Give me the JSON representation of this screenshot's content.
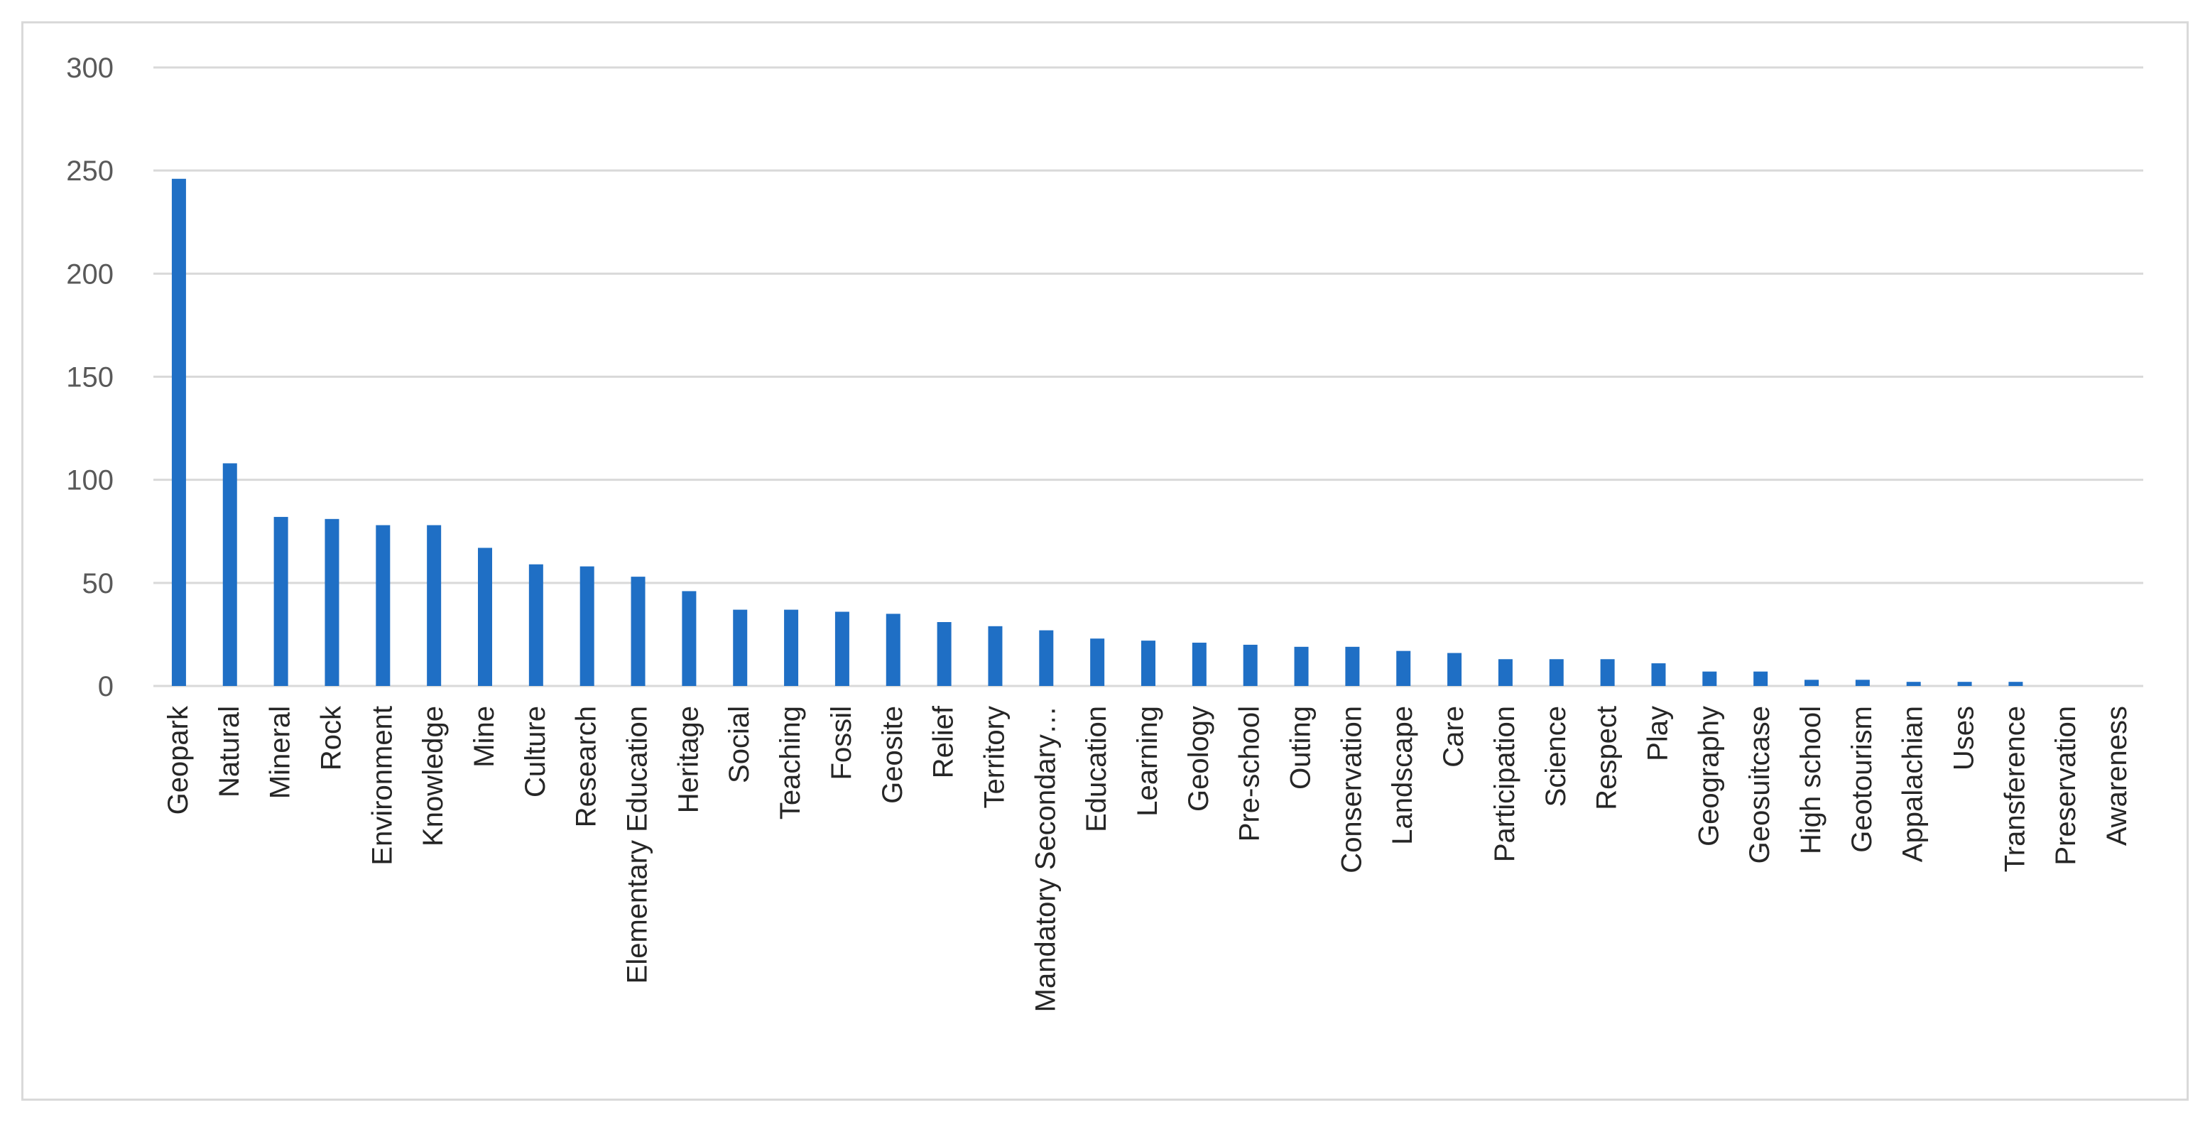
{
  "chart_data": {
    "type": "bar",
    "title": "",
    "xlabel": "",
    "ylabel": "",
    "ylim": [
      0,
      300
    ],
    "yticks": [
      "0",
      "50",
      "100",
      "150",
      "200",
      "250",
      "300"
    ],
    "grid": true,
    "legend": "none",
    "bar_color": "#1f6fc5",
    "categories": [
      "Geopark",
      "Natural",
      "Mineral",
      "Rock",
      "Environment",
      "Knowledge",
      "Mine",
      "Culture",
      "Research",
      "Elementary Education",
      "Heritage",
      "Social",
      "Teaching",
      "Fossil",
      "Geosite",
      "Relief",
      "Territory",
      "Mandatory Secondary…",
      "Education",
      "Learning",
      "Geology",
      "Pre-school",
      "Outing",
      "Conservation",
      "Landscape",
      "Care",
      "Participation",
      "Science",
      "Respect",
      "Play",
      "Geography",
      "Geosuitcase",
      "High school",
      "Geotourism",
      "Appalachian",
      "Uses",
      "Transference",
      "Preservation",
      "Awareness"
    ],
    "values": [
      246,
      108,
      82,
      81,
      78,
      78,
      67,
      59,
      58,
      53,
      46,
      37,
      37,
      36,
      35,
      31,
      29,
      27,
      23,
      22,
      21,
      20,
      19,
      19,
      17,
      16,
      13,
      13,
      13,
      11,
      7,
      7,
      3,
      3,
      2,
      2,
      2,
      0,
      0
    ]
  }
}
